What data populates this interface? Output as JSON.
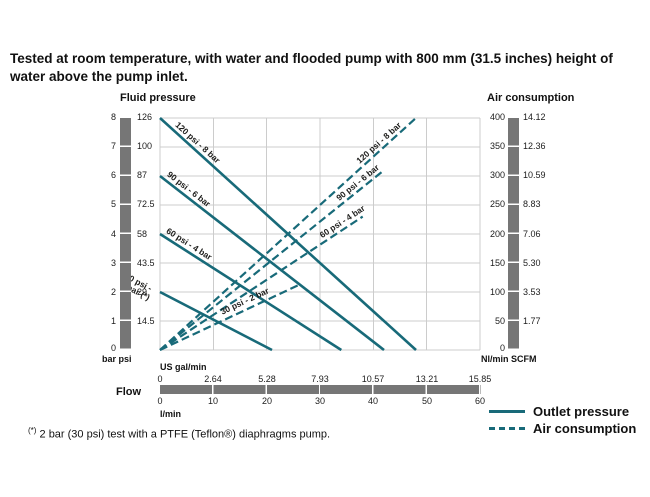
{
  "title": "Tested at room temperature, with water and flooded pump with 800 mm  (31.5 inches) height of water above the pump inlet.",
  "axes": {
    "left": {
      "title": "Fluid pressure",
      "bar_ticks": [
        "8",
        "7",
        "6",
        "5",
        "4",
        "3",
        "2",
        "1"
      ],
      "psi_ticks": [
        "126",
        "100",
        "87",
        "72.5",
        "58",
        "43.5",
        "29",
        "14.5"
      ],
      "zero": "0",
      "units": "bar psi"
    },
    "right": {
      "title": "Air consumption",
      "nl_ticks": [
        "400",
        "350",
        "300",
        "250",
        "200",
        "150",
        "100",
        "50"
      ],
      "scfm_ticks": [
        "14.12",
        "12.36",
        "10.59",
        "8.83",
        "7.06",
        "5.30",
        "3.53",
        "1.77"
      ],
      "zero": "0",
      "units": "Nl/min SCFM"
    },
    "bottom": {
      "flow": "Flow",
      "gal_label": "US gal/min",
      "gal_ticks": [
        "0",
        "2.64",
        "5.28",
        "7.93",
        "10.57",
        "13.21",
        "15.85"
      ],
      "l_label": "l/min",
      "l_ticks": [
        "0",
        "10",
        "20",
        "30",
        "40",
        "50",
        "60"
      ]
    }
  },
  "legend": [
    {
      "style": "solid",
      "label": "Outlet pressure"
    },
    {
      "style": "dashed",
      "label": "Air consumption"
    }
  ],
  "footnote": {
    "marker": "(*)",
    "text": "2 bar (30 psi) test with a PTFE (Teflon®) diaphragms pump."
  },
  "colors": {
    "line": "#186a79",
    "grid": "#cccccc",
    "scalebar": "#767676",
    "label": "#1d1d1b"
  },
  "chart_data": {
    "type": "line",
    "x_unit": "l/min",
    "xlim_lmin": [
      0,
      60
    ],
    "xlim_usgalmin": [
      0,
      15.85
    ],
    "ylim_left_bar": [
      0,
      8
    ],
    "ylim_left_psi": [
      0,
      126
    ],
    "ylim_right_nlmin": [
      0,
      400
    ],
    "ylim_right_scfm": [
      0,
      14.12
    ],
    "grid": "on",
    "series": [
      {
        "name": "outlet-pressure-8bar",
        "label": "120 psi - 8 bar",
        "style": "solid",
        "axis": "bar",
        "points": [
          [
            0,
            8
          ],
          [
            48,
            0
          ]
        ]
      },
      {
        "name": "outlet-pressure-6bar",
        "label": "90 psi - 6 bar",
        "style": "solid",
        "axis": "bar",
        "points": [
          [
            0,
            6
          ],
          [
            42,
            0
          ]
        ]
      },
      {
        "name": "outlet-pressure-4bar",
        "label": "60 psi - 4 bar",
        "style": "solid",
        "axis": "bar",
        "points": [
          [
            0,
            4
          ],
          [
            34,
            0
          ]
        ]
      },
      {
        "name": "outlet-pressure-2bar",
        "label": "30 psi -\n2 bar (*)",
        "style": "solid",
        "axis": "bar",
        "points": [
          [
            0,
            2
          ],
          [
            21,
            0
          ]
        ]
      },
      {
        "name": "air-consumption-8bar",
        "label": "120 psi - 8 bar",
        "style": "dashed",
        "axis": "nlmin",
        "points": [
          [
            0,
            0
          ],
          [
            48,
            400
          ]
        ]
      },
      {
        "name": "air-consumption-6bar",
        "label": "90 psi - 6 bar",
        "style": "dashed",
        "axis": "nlmin",
        "points": [
          [
            0,
            0
          ],
          [
            42,
            310
          ]
        ]
      },
      {
        "name": "air-consumption-4bar",
        "label": "60 psi - 4 bar",
        "style": "dashed",
        "axis": "nlmin",
        "points": [
          [
            0,
            0
          ],
          [
            38,
            230
          ]
        ]
      },
      {
        "name": "air-consumption-2bar",
        "label": "30 psi - 2 bar",
        "style": "dashed",
        "axis": "nlmin",
        "points": [
          [
            0,
            0
          ],
          [
            26,
            112
          ]
        ]
      }
    ]
  }
}
